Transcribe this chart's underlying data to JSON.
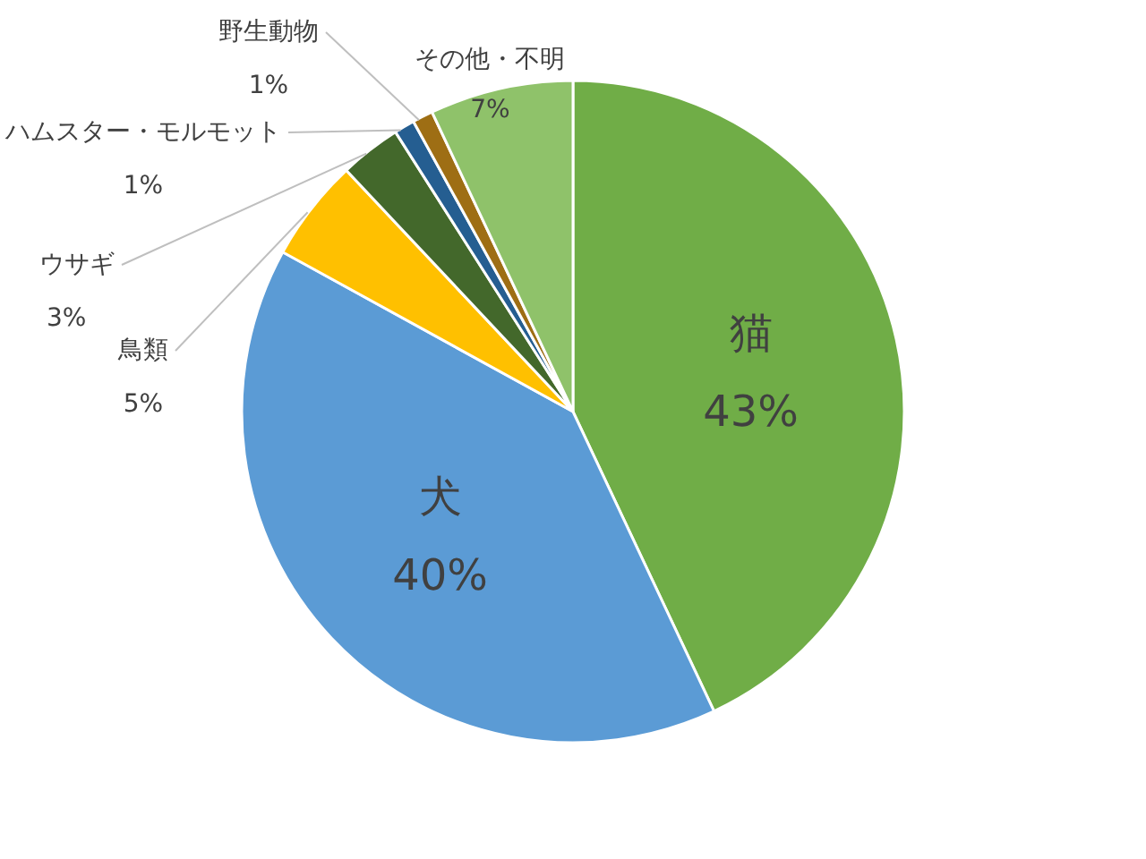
{
  "chart_data": {
    "type": "pie",
    "categories": [
      "猫",
      "犬",
      "鳥類",
      "ウサギ",
      "ハムスター・モルモット",
      "野生動物",
      "その他・不明"
    ],
    "values": [
      43,
      40,
      5,
      3,
      1,
      1,
      7
    ],
    "colors": [
      "#70ad47",
      "#5b9bd5",
      "#ffc000",
      "#43682b",
      "#255e91",
      "#9e6e14",
      "#8fc26a"
    ],
    "value_labels": [
      "43%",
      "40%",
      "5%",
      "3%",
      "1%",
      "1%",
      "7%"
    ],
    "legend": false
  }
}
